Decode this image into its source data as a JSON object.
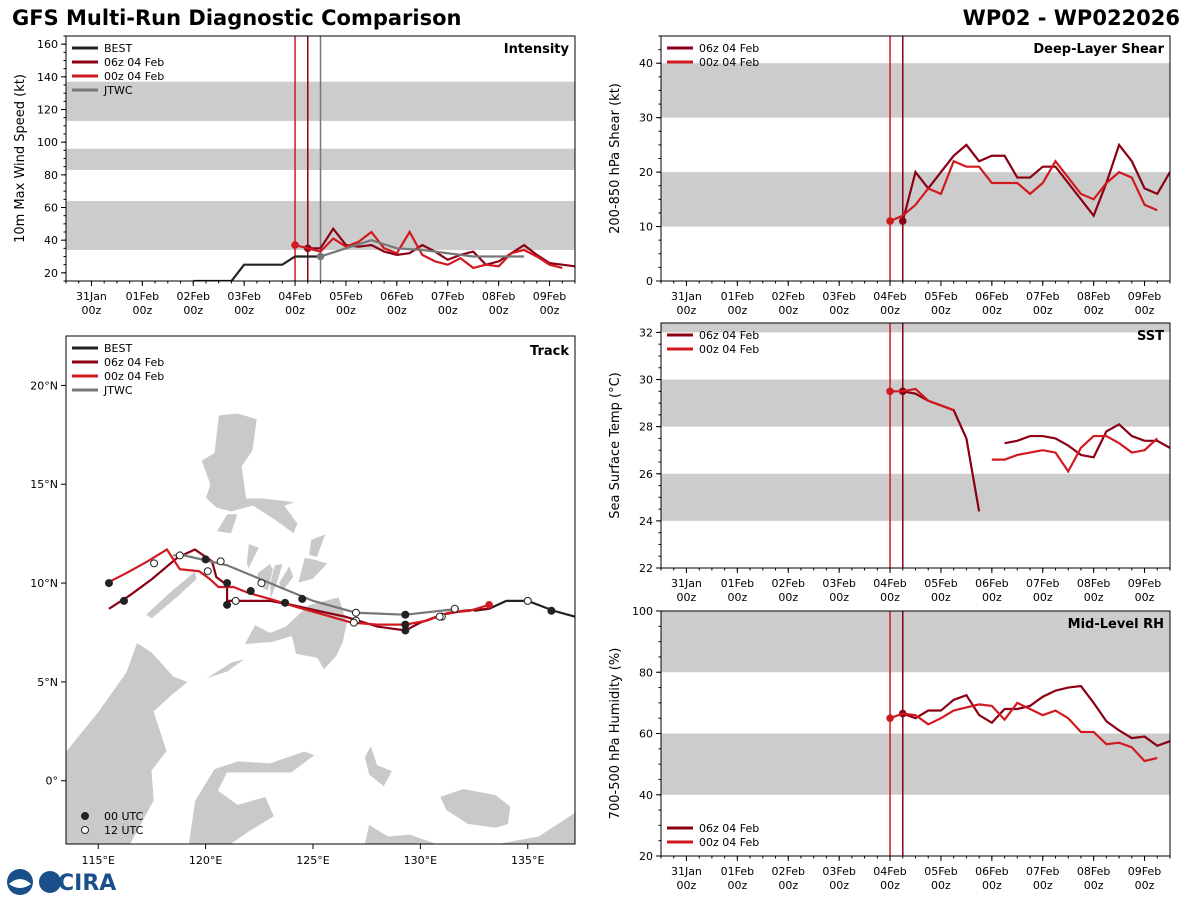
{
  "header": {
    "title": "GFS Multi-Run Diagnostic Comparison",
    "storm": "WP02 - WP022026"
  },
  "colors": {
    "best": "#222222",
    "run06": "#8b0014",
    "run00": "#d11a1f",
    "jtwc": "#777777",
    "band": "#cccccc",
    "land": "#c9c9c9"
  },
  "time_axis": {
    "ticks": [
      {
        "day": 0,
        "top": "31Jan",
        "bottom": "00z"
      },
      {
        "day": 1,
        "top": "01Feb",
        "bottom": "00z"
      },
      {
        "day": 2,
        "top": "02Feb",
        "bottom": "00z"
      },
      {
        "day": 3,
        "top": "03Feb",
        "bottom": "00z"
      },
      {
        "day": 4,
        "top": "04Feb",
        "bottom": "00z"
      },
      {
        "day": 5,
        "top": "05Feb",
        "bottom": "00z"
      },
      {
        "day": 6,
        "top": "06Feb",
        "bottom": "00z"
      },
      {
        "day": 7,
        "top": "07Feb",
        "bottom": "00z"
      },
      {
        "day": 8,
        "top": "08Feb",
        "bottom": "00z"
      },
      {
        "day": 9,
        "top": "09Feb",
        "bottom": "00z"
      }
    ],
    "x_range_days": [
      -0.5,
      9.5
    ]
  },
  "chart_data": [
    {
      "id": "intensity",
      "type": "line",
      "title": "Intensity",
      "ylabel": "10m Max Wind Speed (kt)",
      "ylim": [
        15,
        165
      ],
      "yticks": [
        20,
        40,
        60,
        80,
        100,
        120,
        140,
        160
      ],
      "bands": [
        [
          34,
          64
        ],
        [
          83,
          96
        ],
        [
          113,
          137
        ]
      ],
      "vlines": [
        {
          "day": 4.0,
          "series": "run00"
        },
        {
          "day": 4.25,
          "series": "run06"
        },
        {
          "day": 4.5,
          "series": "jtwc"
        }
      ],
      "legend": [
        "BEST",
        "06z 04 Feb",
        "00z 04 Feb",
        "JTWC"
      ],
      "series": [
        {
          "name": "BEST",
          "key": "best",
          "x": [
            2.0,
            2.25,
            2.5,
            2.75,
            3.0,
            3.25,
            3.5,
            3.75,
            4.0,
            4.25,
            4.5
          ],
          "y": [
            15,
            15,
            15,
            15,
            25,
            25,
            25,
            25,
            30,
            30,
            30
          ]
        },
        {
          "name": "06z 04 Feb",
          "key": "run06",
          "x": [
            4.25,
            4.5,
            4.75,
            5.0,
            5.25,
            5.5,
            5.75,
            6.0,
            6.25,
            6.5,
            6.75,
            7.0,
            7.25,
            7.5,
            7.75,
            8.0,
            8.25,
            8.5,
            8.75,
            9.0,
            9.25,
            9.5
          ],
          "y": [
            35,
            35,
            47,
            37,
            36,
            37,
            33,
            31,
            32,
            37,
            33,
            28,
            31,
            33,
            25,
            27,
            32,
            37,
            31,
            26,
            25,
            24
          ],
          "start_marker": true
        },
        {
          "name": "00z 04 Feb",
          "key": "run00",
          "x": [
            4.0,
            4.25,
            4.5,
            4.75,
            5.0,
            5.25,
            5.5,
            5.75,
            6.0,
            6.25,
            6.5,
            6.75,
            7.0,
            7.25,
            7.5,
            7.75,
            8.0,
            8.25,
            8.5,
            8.75,
            9.0,
            9.25
          ],
          "y": [
            37,
            35,
            33,
            41,
            36,
            39,
            45,
            35,
            32,
            45,
            31,
            27,
            25,
            29,
            23,
            25,
            24,
            32,
            34,
            30,
            25,
            23
          ],
          "start_marker": true
        },
        {
          "name": "JTWC",
          "key": "jtwc",
          "x": [
            4.5,
            5.0,
            5.5,
            6.0,
            6.5,
            7.0,
            7.5,
            8.0,
            8.5
          ],
          "y": [
            30,
            35,
            40,
            35,
            34,
            32,
            30,
            30,
            30
          ],
          "start_marker": true
        }
      ]
    },
    {
      "id": "shear",
      "type": "line",
      "title": "Deep-Layer Shear",
      "ylabel": "200-850 hPa Shear (kt)",
      "ylim": [
        0,
        45
      ],
      "yticks": [
        0,
        10,
        20,
        30,
        40
      ],
      "bands": [
        [
          10,
          20
        ],
        [
          30,
          40
        ]
      ],
      "vlines": [
        {
          "day": 4.0,
          "series": "run00"
        },
        {
          "day": 4.25,
          "series": "run06"
        }
      ],
      "legend": [
        "06z 04 Feb",
        "00z 04 Feb"
      ],
      "series": [
        {
          "name": "06z 04 Feb",
          "key": "run06",
          "x": [
            4.25,
            4.5,
            4.75,
            5.0,
            5.25,
            5.5,
            5.75,
            6.0,
            6.25,
            6.5,
            6.75,
            7.0,
            7.25,
            7.5,
            7.75,
            8.0,
            8.25,
            8.5,
            8.75,
            9.0,
            9.25,
            9.5
          ],
          "y": [
            11,
            20,
            17,
            20,
            23,
            25,
            22,
            23,
            23,
            19,
            19,
            21,
            21,
            18,
            15,
            12,
            18,
            25,
            22,
            17,
            16,
            20
          ],
          "start_marker": true
        },
        {
          "name": "00z 04 Feb",
          "key": "run00",
          "x": [
            4.0,
            4.25,
            4.5,
            4.75,
            5.0,
            5.25,
            5.5,
            5.75,
            6.0,
            6.25,
            6.5,
            6.75,
            7.0,
            7.25,
            7.5,
            7.75,
            8.0,
            8.25,
            8.5,
            8.75,
            9.0,
            9.25
          ],
          "y": [
            11,
            12,
            14,
            17,
            16,
            22,
            21,
            21,
            18,
            18,
            18,
            16,
            18,
            22,
            19,
            16,
            15,
            18,
            20,
            19,
            14,
            13
          ],
          "start_marker": true
        }
      ]
    },
    {
      "id": "sst",
      "type": "line",
      "title": "SST",
      "ylabel": "Sea Surface Temp (°C)",
      "ylim": [
        22,
        32.4
      ],
      "yticks": [
        22,
        24,
        26,
        28,
        30,
        32
      ],
      "bands": [
        [
          24,
          26
        ],
        [
          28,
          30
        ],
        [
          32,
          34
        ]
      ],
      "vlines": [
        {
          "day": 4.0,
          "series": "run00"
        },
        {
          "day": 4.25,
          "series": "run06"
        }
      ],
      "legend": [
        "06z 04 Feb",
        "00z 04 Feb"
      ],
      "series": [
        {
          "name": "06z 04 Feb",
          "key": "run06",
          "x": [
            4.25,
            4.5,
            4.75,
            5.0,
            5.25,
            5.5,
            5.75
          ],
          "y": [
            29.5,
            29.4,
            29.1,
            28.9,
            28.7,
            27.5,
            24.4
          ],
          "start_marker": true
        },
        {
          "name": "06z 04 Feb (cont.)",
          "key": "run06",
          "x": [
            6.25,
            6.5,
            6.75,
            7.0,
            7.25,
            7.5,
            7.75,
            8.0,
            8.25,
            8.5,
            8.75,
            9.0,
            9.25,
            9.5
          ],
          "y": [
            27.3,
            27.4,
            27.6,
            27.6,
            27.5,
            27.2,
            26.8,
            26.7,
            27.8,
            28.1,
            27.6,
            27.4,
            27.4,
            27.1
          ]
        },
        {
          "name": "00z 04 Feb",
          "key": "run00",
          "x": [
            4.0,
            4.25,
            4.5,
            4.75,
            5.0,
            5.25
          ],
          "y": [
            29.5,
            29.5,
            29.6,
            29.1,
            28.9,
            28.7
          ],
          "start_marker": true
        },
        {
          "name": "00z 04 Feb (cont.)",
          "key": "run00",
          "x": [
            6.0,
            6.25,
            6.5,
            6.75,
            7.0,
            7.25,
            7.5,
            7.75,
            8.0,
            8.25,
            8.5,
            8.75,
            9.0,
            9.25
          ],
          "y": [
            26.6,
            26.6,
            26.8,
            26.9,
            27.0,
            26.9,
            26.1,
            27.1,
            27.6,
            27.6,
            27.3,
            26.9,
            27.0,
            27.5
          ]
        }
      ]
    },
    {
      "id": "rh",
      "type": "line",
      "title": "Mid-Level RH",
      "ylabel": "700-500 hPa Humidity (%)",
      "ylim": [
        20,
        100
      ],
      "yticks": [
        20,
        40,
        60,
        80,
        100
      ],
      "bands": [
        [
          40,
          60
        ],
        [
          80,
          100
        ]
      ],
      "vlines": [
        {
          "day": 4.0,
          "series": "run00"
        },
        {
          "day": 4.25,
          "series": "run06"
        }
      ],
      "legend": [
        "06z 04 Feb",
        "00z 04 Feb"
      ],
      "series": [
        {
          "name": "06z 04 Feb",
          "key": "run06",
          "x": [
            4.25,
            4.5,
            4.75,
            5.0,
            5.25,
            5.5,
            5.75,
            6.0,
            6.25,
            6.5,
            6.75,
            7.0,
            7.25,
            7.5,
            7.75,
            8.0,
            8.25,
            8.5,
            8.75,
            9.0,
            9.25,
            9.5
          ],
          "y": [
            66.5,
            65,
            67.5,
            67.5,
            71,
            72.5,
            66,
            63.5,
            68,
            68,
            69,
            72,
            74,
            75,
            75.5,
            70,
            64,
            61,
            58.5,
            59,
            56,
            57.5
          ],
          "start_marker": true
        },
        {
          "name": "00z 04 Feb",
          "key": "run00",
          "x": [
            4.0,
            4.25,
            4.5,
            4.75,
            5.0,
            5.25,
            5.5,
            5.75,
            6.0,
            6.25,
            6.5,
            6.75,
            7.0,
            7.25,
            7.5,
            7.75,
            8.0,
            8.25,
            8.5,
            8.75,
            9.0,
            9.25
          ],
          "y": [
            65,
            66.5,
            66,
            63,
            65,
            67.5,
            68.5,
            69.5,
            69,
            64.5,
            70,
            68,
            66,
            67.5,
            65,
            60.5,
            60.5,
            56.5,
            57,
            55.5,
            51,
            52
          ],
          "start_marker": true
        }
      ]
    },
    {
      "id": "track",
      "type": "scatter",
      "title": "Track",
      "xlim": [
        113.5,
        137.2
      ],
      "ylim": [
        -3.2,
        22.5
      ],
      "xticks": [
        {
          "lon": 115,
          "label": "115°E"
        },
        {
          "lon": 120,
          "label": "120°E"
        },
        {
          "lon": 125,
          "label": "125°E"
        },
        {
          "lon": 130,
          "label": "130°E"
        },
        {
          "lon": 135,
          "label": "135°E"
        }
      ],
      "yticks": [
        {
          "lat": 0,
          "label": "0°"
        },
        {
          "lat": 5,
          "label": "5°N"
        },
        {
          "lat": 10,
          "label": "10°N"
        },
        {
          "lat": 15,
          "label": "15°N"
        },
        {
          "lat": 20,
          "label": "20°N"
        }
      ],
      "legend": [
        "BEST",
        "06z 04 Feb",
        "00z 04 Feb",
        "JTWC"
      ],
      "marker_legend": [
        "00 UTC",
        "12 UTC"
      ],
      "series": [
        {
          "name": "BEST",
          "key": "best",
          "lon": [
            137.2,
            136.2,
            135.0,
            134.0,
            133.2,
            132.5
          ],
          "lat": [
            8.3,
            8.6,
            9.1,
            9.1,
            8.7,
            8.6
          ]
        },
        {
          "name": "06z 04 Feb",
          "key": "run06",
          "lon": [
            133.2,
            132.0,
            131.0,
            130.0,
            129.3,
            128.0,
            126.5,
            125.2,
            124.0,
            123.0,
            121.8,
            121.0,
            121.0,
            120.5,
            120.3,
            119.5,
            118.7,
            117.5,
            116.5,
            115.5
          ],
          "lat": [
            8.7,
            8.6,
            8.4,
            8.0,
            7.6,
            7.8,
            8.3,
            8.6,
            8.9,
            9.1,
            9.1,
            9.1,
            9.9,
            10.3,
            11.1,
            11.7,
            11.3,
            10.2,
            9.4,
            8.7
          ],
          "points": [
            {
              "lon": 129.3,
              "lat": 7.6,
              "hour": "00"
            },
            {
              "lon": 123.7,
              "lat": 9.0,
              "hour": "00"
            },
            {
              "lon": 121.0,
              "lat": 8.9,
              "hour": "00"
            },
            {
              "lon": 120.0,
              "lat": 11.2,
              "hour": "00"
            },
            {
              "lon": 116.2,
              "lat": 9.1,
              "hour": "00"
            },
            {
              "lon": 131.0,
              "lat": 8.3,
              "hour": "12"
            },
            {
              "lon": 127.0,
              "lat": 8.1,
              "hour": "12"
            },
            {
              "lon": 121.4,
              "lat": 9.1,
              "hour": "12"
            },
            {
              "lon": 118.8,
              "lat": 11.4,
              "hour": "12"
            }
          ]
        },
        {
          "name": "00z 04 Feb",
          "key": "run00",
          "lon": [
            133.2,
            132.3,
            131.3,
            130.3,
            129.3,
            128.0,
            126.8,
            125.5,
            124.2,
            123.0,
            122.0,
            121.3,
            120.6,
            120.2,
            119.7,
            118.8,
            118.2,
            117.3,
            116.3,
            115.4
          ],
          "lat": [
            8.9,
            8.6,
            8.5,
            8.1,
            7.9,
            7.9,
            8.0,
            8.4,
            8.8,
            9.2,
            9.5,
            9.8,
            9.8,
            10.2,
            10.6,
            10.7,
            11.7,
            11.1,
            10.5,
            10.0
          ],
          "points": [
            {
              "lon": 129.3,
              "lat": 7.9,
              "hour": "00"
            },
            {
              "lon": 122.1,
              "lat": 9.6,
              "hour": "00"
            },
            {
              "lon": 115.5,
              "lat": 10.0,
              "hour": "00"
            },
            {
              "lon": 130.9,
              "lat": 8.3,
              "hour": "12"
            },
            {
              "lon": 126.9,
              "lat": 8.0,
              "hour": "12"
            },
            {
              "lon": 120.1,
              "lat": 10.6,
              "hour": "12"
            },
            {
              "lon": 117.6,
              "lat": 11.0,
              "hour": "12"
            }
          ]
        },
        {
          "name": "JTWC",
          "key": "jtwc",
          "lon": [
            131.8,
            129.3,
            127.0,
            125.0,
            123.0,
            121.0,
            119.0,
            118.5
          ],
          "lat": [
            8.7,
            8.4,
            8.5,
            9.1,
            10.0,
            10.9,
            11.4,
            11.4
          ],
          "points": [
            {
              "lon": 129.3,
              "lat": 8.4,
              "hour": "00"
            },
            {
              "lon": 124.5,
              "lat": 9.2,
              "hour": "00"
            },
            {
              "lon": 121.0,
              "lat": 10.0,
              "hour": "00"
            },
            {
              "lon": 131.6,
              "lat": 8.7,
              "hour": "12"
            },
            {
              "lon": 127.0,
              "lat": 8.5,
              "hour": "12"
            },
            {
              "lon": 122.6,
              "lat": 10.0,
              "hour": "12"
            },
            {
              "lon": 120.7,
              "lat": 11.1,
              "hour": "12"
            }
          ]
        }
      ],
      "best_points": [
        {
          "lon": 136.1,
          "lat": 8.6,
          "hour": "00"
        },
        {
          "lon": 135.0,
          "lat": 9.1,
          "hour": "12"
        }
      ]
    }
  ],
  "logo": {
    "text": "CIRA"
  }
}
